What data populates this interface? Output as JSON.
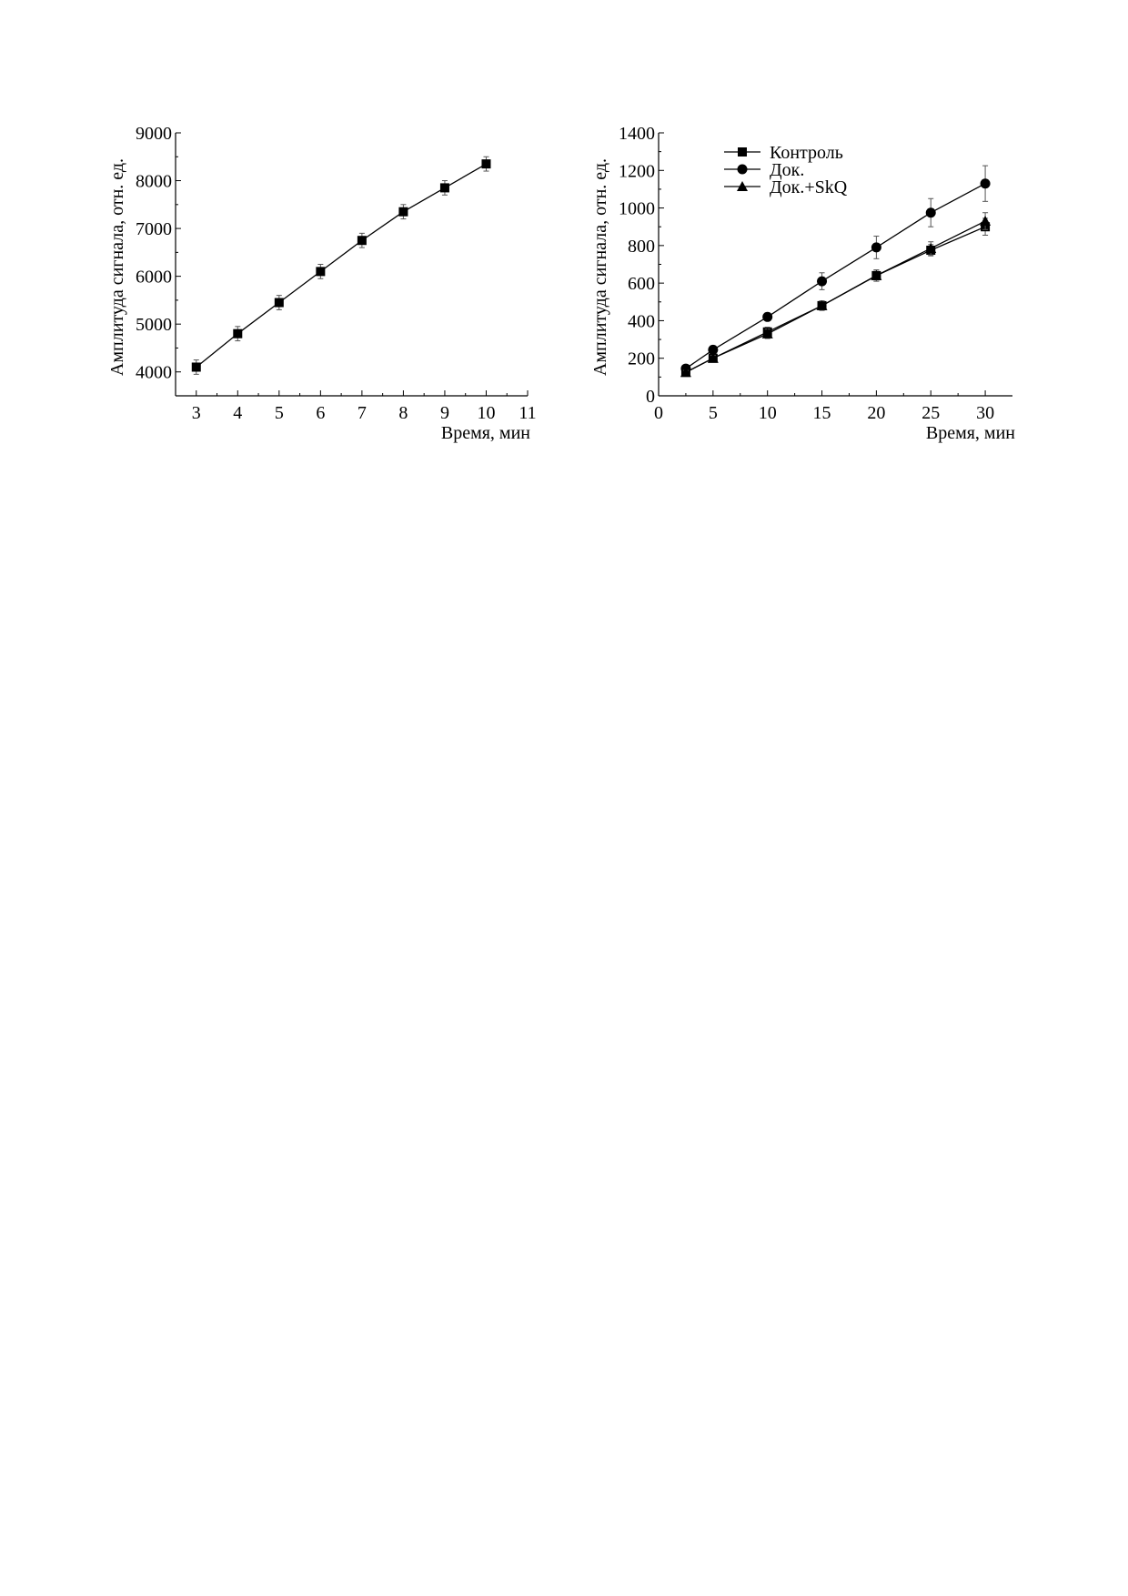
{
  "chart_data": [
    {
      "type": "line",
      "xlabel": "Время, мин",
      "ylabel": "Амплитуда сигнала, отн. ед.",
      "xlim": [
        2.5,
        11
      ],
      "ylim": [
        3500,
        9000
      ],
      "xticks": [
        3,
        4,
        5,
        6,
        7,
        8,
        9,
        10,
        11
      ],
      "yticks": [
        4000,
        5000,
        6000,
        7000,
        8000,
        9000
      ],
      "grid": false,
      "series": [
        {
          "marker": "square",
          "x": [
            3,
            4,
            5,
            6,
            7,
            8,
            9,
            10
          ],
          "y": [
            4100,
            4800,
            5450,
            6100,
            6750,
            7350,
            7850,
            8350
          ],
          "err": [
            150,
            150,
            150,
            150,
            150,
            150,
            150,
            150
          ]
        }
      ]
    },
    {
      "type": "line",
      "xlabel": "Время, мин",
      "ylabel": "Амплитуда сигнала, отн. ед.",
      "xlim": [
        0,
        32.5
      ],
      "ylim": [
        0,
        1400
      ],
      "xticks": [
        0,
        5,
        10,
        15,
        20,
        25,
        30
      ],
      "yticks": [
        0,
        200,
        400,
        600,
        800,
        1000,
        1200,
        1400
      ],
      "grid": false,
      "legend": "top-left",
      "series": [
        {
          "name": "Контроль",
          "marker": "square",
          "x": [
            2.5,
            5,
            10,
            15,
            20,
            25,
            30
          ],
          "y": [
            125,
            200,
            340,
            480,
            640,
            775,
            900
          ],
          "err": [
            10,
            15,
            25,
            25,
            30,
            30,
            45
          ]
        },
        {
          "name": "Док.",
          "marker": "circle",
          "x": [
            2.5,
            5,
            10,
            15,
            20,
            25,
            30
          ],
          "y": [
            145,
            245,
            420,
            610,
            790,
            975,
            1130
          ],
          "err": [
            10,
            20,
            15,
            45,
            60,
            75,
            95
          ]
        },
        {
          "name": "Док.+SkQ",
          "marker": "triangle",
          "x": [
            2.5,
            5,
            10,
            15,
            20,
            25,
            30
          ],
          "y": [
            125,
            200,
            330,
            480,
            640,
            785,
            930
          ],
          "err": [
            10,
            15,
            25,
            25,
            30,
            35,
            45
          ]
        }
      ]
    }
  ]
}
